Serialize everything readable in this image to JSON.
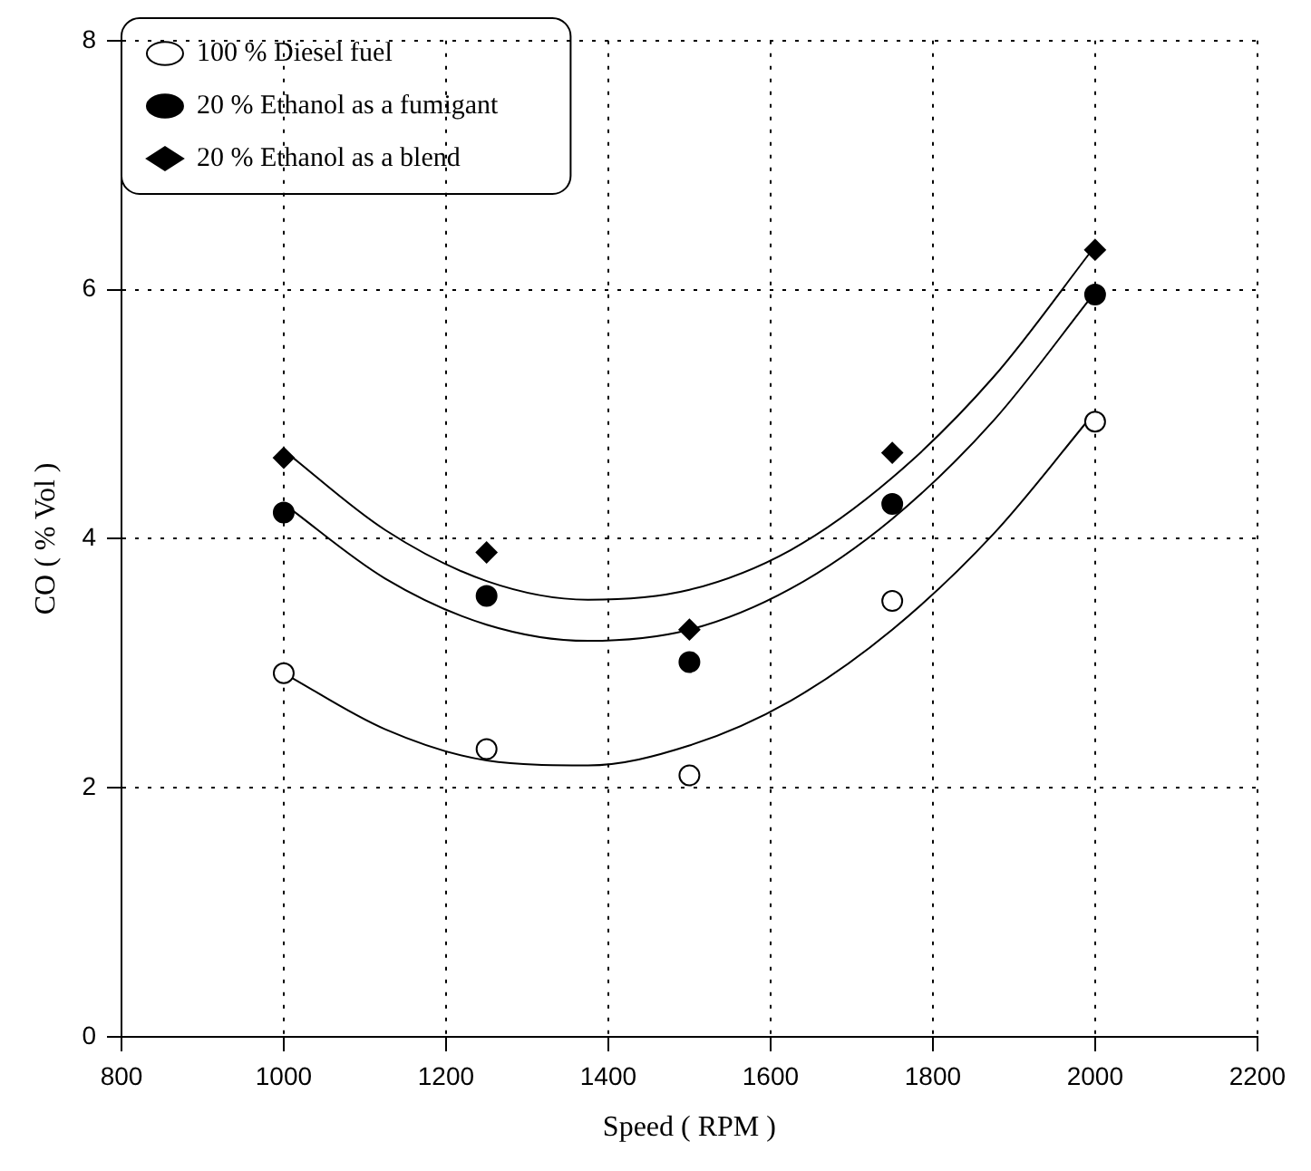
{
  "chart_data": {
    "type": "scatter",
    "xlabel": "Speed ( RPM )",
    "ylabel": "CO ( % Vol )",
    "xlim": [
      800,
      2200
    ],
    "xticks": [
      800,
      1000,
      1200,
      1400,
      1600,
      1800,
      2000,
      2200
    ],
    "ylim": [
      0,
      8
    ],
    "yticks": [
      0,
      2,
      4,
      6,
      8
    ],
    "grid": true,
    "legend": "top left",
    "series": [
      {
        "name": "100 % Diesel fuel",
        "color": "#ffffff",
        "marker": "circle",
        "x": [
          1000,
          1250,
          1500,
          1750,
          2000
        ],
        "values": [
          2.92,
          2.31,
          2.1,
          3.5,
          4.94
        ]
      },
      {
        "name": "20 % Ethanol as a fumigant",
        "color": "#000000",
        "marker": "circle",
        "x": [
          1000,
          1250,
          1500,
          1750,
          2000
        ],
        "values": [
          4.21,
          3.54,
          3.01,
          4.28,
          5.96
        ]
      },
      {
        "name": "20 % Ethanol as a blend",
        "color": "#000000",
        "marker": "diamond",
        "x": [
          1000,
          1250,
          1500,
          1750,
          2000
        ],
        "values": [
          4.65,
          3.89,
          3.27,
          4.69,
          6.32
        ]
      },
      {
        "type": "line",
        "color": "#000000",
        "marker": "none",
        "x": [
          1000,
          1125,
          1250,
          1375,
          1500,
          1625,
          1750,
          1875,
          2000
        ],
        "values": [
          2.92,
          2.47,
          2.22,
          2.18,
          2.34,
          2.7,
          3.27,
          4.04,
          5.02
        ]
      },
      {
        "type": "line",
        "color": "#000000",
        "marker": "none",
        "x": [
          1000,
          1125,
          1250,
          1375,
          1500,
          1625,
          1750,
          1875,
          2000
        ],
        "values": [
          4.28,
          3.68,
          3.31,
          3.18,
          3.27,
          3.6,
          4.16,
          4.95,
          5.98
        ]
      },
      {
        "type": "line",
        "color": "#000000",
        "marker": "none",
        "x": [
          1000,
          1125,
          1250,
          1375,
          1500,
          1625,
          1750,
          1875,
          2000
        ],
        "values": [
          4.71,
          4.07,
          3.66,
          3.51,
          3.59,
          3.91,
          4.49,
          5.3,
          6.35
        ]
      }
    ]
  }
}
